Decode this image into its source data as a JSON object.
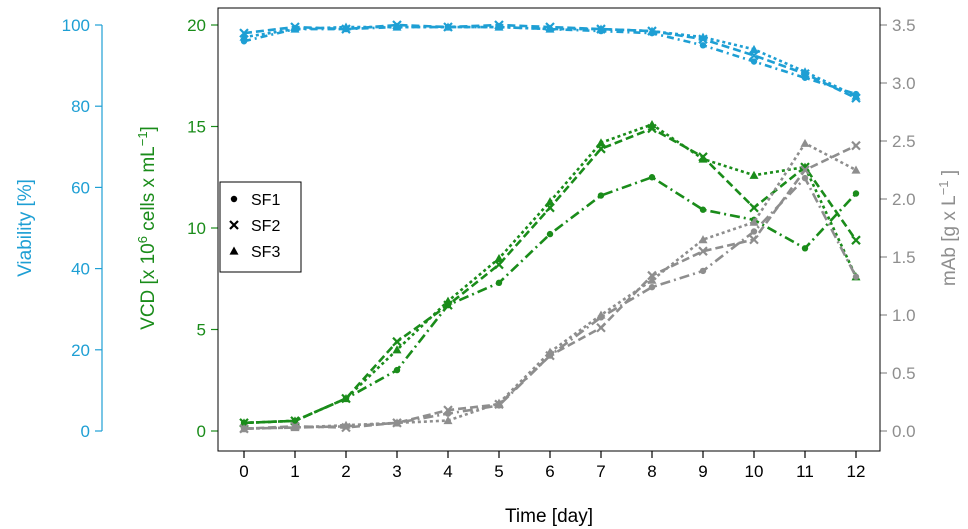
{
  "colors": {
    "viability": "#1E9FD4",
    "vcd": "#1A8C1A",
    "mab": "#8E8E8E",
    "axis": "#000000"
  },
  "axes": {
    "viability": {
      "label": "Viability [%]",
      "ticks": [
        0,
        20,
        40,
        60,
        80,
        100
      ],
      "range": [
        0,
        100
      ]
    },
    "vcd": {
      "label_main": "VCD [x 10",
      "label_sup": "6",
      "label_rest": " cells x mL",
      "label_sup2": "−1",
      "label_end": "]",
      "ticks": [
        0,
        5,
        10,
        15,
        20
      ],
      "range": [
        0,
        20
      ]
    },
    "mab": {
      "label_main": "mAb [g x L",
      "label_sup": "−1",
      "label_end": " ]",
      "ticks": [
        "0.0",
        "0.5",
        "1.0",
        "1.5",
        "2.0",
        "2.5",
        "3.0",
        "3.5"
      ],
      "range": [
        0,
        3.5
      ]
    },
    "x": {
      "label": "Time [day]",
      "ticks": [
        0,
        1,
        2,
        3,
        4,
        5,
        6,
        7,
        8,
        9,
        10,
        11,
        12
      ]
    }
  },
  "legend": {
    "entries": [
      {
        "label": "SF1",
        "symbol": "circle"
      },
      {
        "label": "SF2",
        "symbol": "cross"
      },
      {
        "label": "SF3",
        "symbol": "triangle"
      }
    ]
  },
  "chart_data": {
    "type": "line",
    "x": [
      0,
      1,
      2,
      3,
      4,
      5,
      6,
      7,
      8,
      9,
      10,
      11,
      12
    ],
    "xlabel": "Time [day]",
    "series": [
      {
        "name": "SF1",
        "measure": "Viability",
        "axis": "viability",
        "dash": "7,4,2,4",
        "values": [
          96,
          99,
          99,
          99.5,
          99.5,
          99.5,
          99,
          98.5,
          98,
          95,
          91,
          87,
          83
        ]
      },
      {
        "name": "SF2",
        "measure": "Viability",
        "axis": "viability",
        "dash": "8,4",
        "values": [
          98,
          99.5,
          99,
          100,
          99.5,
          100,
          99.5,
          99,
          98.5,
          96.5,
          92.5,
          88,
          82
        ]
      },
      {
        "name": "SF3",
        "measure": "Viability",
        "axis": "viability",
        "dash": "3,3",
        "values": [
          97,
          99,
          99.5,
          99.5,
          99.5,
          99.5,
          99,
          99,
          98.5,
          97,
          94,
          88.5,
          82.5
        ]
      },
      {
        "name": "SF1",
        "measure": "VCD",
        "axis": "vcd",
        "dash": "10,4,2,4",
        "values": [
          0.4,
          0.5,
          1.6,
          3.0,
          6.2,
          7.3,
          9.7,
          11.6,
          12.5,
          10.9,
          10.4,
          9.0,
          11.7
        ]
      },
      {
        "name": "SF2",
        "measure": "VCD",
        "axis": "vcd",
        "dash": "8,4",
        "values": [
          0.4,
          0.5,
          1.6,
          4.4,
          6.2,
          8.2,
          11.0,
          13.9,
          14.9,
          13.5,
          11.0,
          13.0,
          9.4
        ]
      },
      {
        "name": "SF3",
        "measure": "VCD",
        "axis": "vcd",
        "dash": "3,3",
        "values": [
          0.4,
          0.5,
          1.6,
          4.0,
          6.4,
          8.5,
          11.3,
          14.2,
          15.1,
          13.4,
          12.6,
          13.0,
          7.6
        ]
      },
      {
        "name": "SF1",
        "measure": "mAb",
        "axis": "mab",
        "dash": "10,4,2,4",
        "values": [
          0.02,
          0.03,
          0.04,
          0.07,
          0.15,
          0.22,
          0.65,
          0.98,
          1.24,
          1.38,
          1.72,
          2.18,
          1.33
        ]
      },
      {
        "name": "SF2",
        "measure": "mAb",
        "axis": "mab",
        "dash": "8,4",
        "values": [
          0.02,
          0.04,
          0.03,
          0.07,
          0.18,
          0.23,
          0.65,
          0.89,
          1.34,
          1.55,
          1.65,
          2.25,
          2.46
        ]
      },
      {
        "name": "SF3",
        "measure": "mAb",
        "axis": "mab",
        "dash": "3,3",
        "values": [
          0.02,
          0.03,
          0.05,
          0.07,
          0.09,
          0.24,
          0.68,
          1.0,
          1.3,
          1.65,
          1.8,
          2.48,
          2.25
        ]
      }
    ],
    "markers": {
      "SF1": "circle",
      "SF2": "cross",
      "SF3": "triangle"
    },
    "y_axes": {
      "viability": {
        "label": "Viability [%]",
        "range": [
          0,
          100
        ]
      },
      "vcd": {
        "label": "VCD [x 10^6 cells x mL^-1]",
        "range": [
          0,
          20
        ]
      },
      "mab": {
        "label": "mAb [g x L^-1 ]",
        "range": [
          0,
          3.5
        ]
      }
    },
    "grid": false,
    "legend_position": "left"
  }
}
